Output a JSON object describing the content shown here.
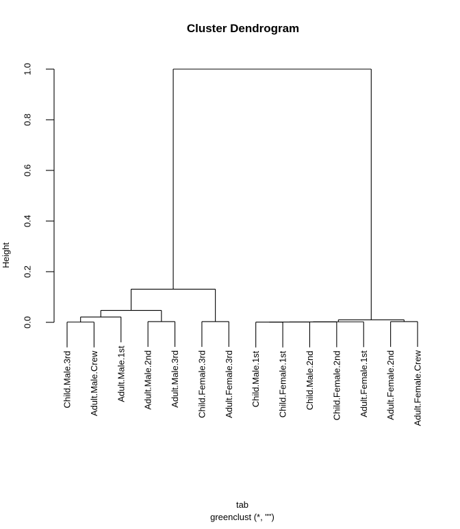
{
  "chart_data": {
    "type": "dendrogram",
    "title": "Cluster Dendrogram",
    "ylabel": "Height",
    "xlabel_lines": [
      "tab",
      "greenclust (*, \"\")"
    ],
    "ylim": [
      0.0,
      1.0
    ],
    "yticks": [
      {
        "label": "0.0",
        "value": 0.0
      },
      {
        "label": "0.2",
        "value": 0.2
      },
      {
        "label": "0.4",
        "value": 0.4
      },
      {
        "label": "0.6",
        "value": 0.6
      },
      {
        "label": "0.8",
        "value": 0.8
      },
      {
        "label": "1.0",
        "value": 1.0
      }
    ],
    "grid": false,
    "hang": 0.1,
    "leaves": [
      "Child.Male.3rd",
      "Adult.Male.Crew",
      "Adult.Male.1st",
      "Adult.Male.2nd",
      "Adult.Male.3rd",
      "Child.Female.3rd",
      "Adult.Female.3rd",
      "Child.Male.1st",
      "Child.Female.1st",
      "Child.Male.2nd",
      "Child.Female.2nd",
      "Adult.Female.1st",
      "Adult.Female.2nd",
      "Adult.Female.Crew"
    ],
    "merges": [
      {
        "a": -1,
        "b": -2,
        "height": 0.001
      },
      {
        "a": 1,
        "b": -3,
        "height": 0.021
      },
      {
        "a": -4,
        "b": -5,
        "height": 0.003
      },
      {
        "a": 2,
        "b": 3,
        "height": 0.047
      },
      {
        "a": -6,
        "b": -7,
        "height": 0.003
      },
      {
        "a": 4,
        "b": 5,
        "height": 0.131
      },
      {
        "a": -8,
        "b": -9,
        "height": 0.0008
      },
      {
        "a": 7,
        "b": -10,
        "height": 0.0012
      },
      {
        "a": 8,
        "b": -11,
        "height": 0.0016
      },
      {
        "a": 9,
        "b": -12,
        "height": 0.002
      },
      {
        "a": -13,
        "b": -14,
        "height": 0.003
      },
      {
        "a": 10,
        "b": 11,
        "height": 0.01
      },
      {
        "a": 6,
        "b": 12,
        "height": 1.0
      }
    ]
  },
  "colors": {
    "line": "#000000",
    "text": "#000000",
    "background": "#ffffff"
  }
}
